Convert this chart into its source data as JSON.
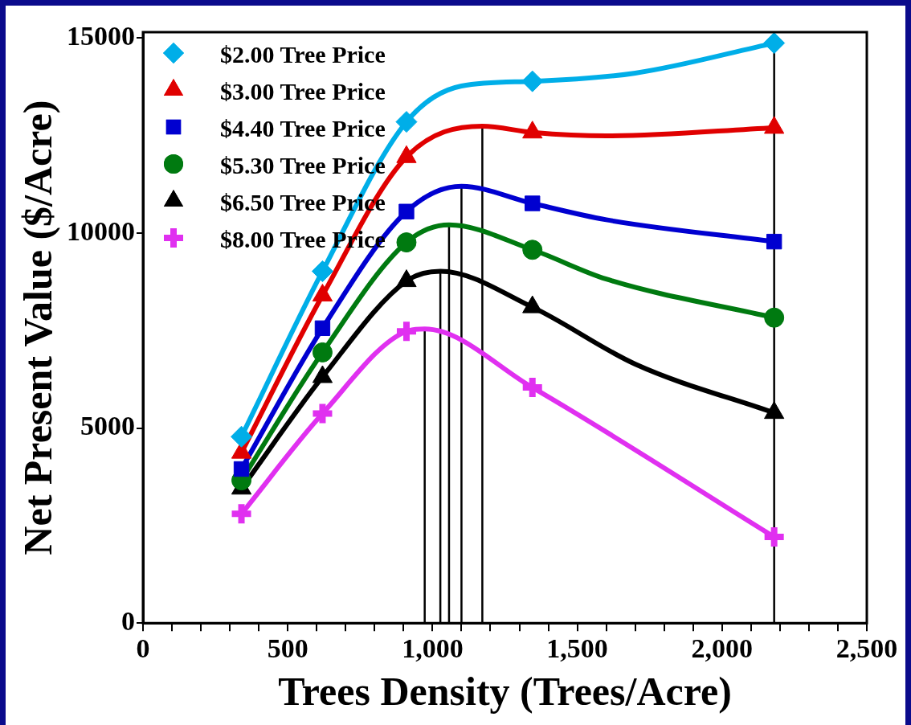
{
  "chart_data": {
    "type": "line",
    "xlabel": "Trees Density (Trees/Acre)",
    "ylabel": "Net Present Value ($/Acre)",
    "xlim": [
      0,
      2500
    ],
    "xticks": [
      0,
      {
        "value": 100,
        "label": null
      },
      {
        "value": 200,
        "label": null
      },
      {
        "value": 300,
        "label": null
      },
      {
        "value": 400,
        "label": null
      },
      500,
      {
        "value": 600,
        "label": null
      },
      {
        "value": 700,
        "label": null
      },
      {
        "value": 800,
        "label": null
      },
      {
        "value": 900,
        "label": null
      },
      {
        "value": 1000,
        "label": "1,000"
      },
      {
        "value": 1100,
        "label": null
      },
      {
        "value": 1200,
        "label": null
      },
      {
        "value": 1300,
        "label": null
      },
      {
        "value": 1400,
        "label": null
      },
      {
        "value": 1500,
        "label": "1,500"
      },
      {
        "value": 1600,
        "label": null
      },
      {
        "value": 1700,
        "label": null
      },
      {
        "value": 1800,
        "label": null
      },
      {
        "value": 1900,
        "label": null
      },
      {
        "value": 2000,
        "label": "2,000"
      },
      {
        "value": 2100,
        "label": null
      },
      {
        "value": 2200,
        "label": null
      },
      {
        "value": 2300,
        "label": null
      },
      {
        "value": 2400,
        "label": null
      },
      {
        "value": 2500,
        "label": "2,500"
      }
    ],
    "ylim": [
      0,
      15150
    ],
    "yticks": [
      0,
      5000,
      10000,
      15000
    ],
    "grid": false,
    "legend": "top left",
    "line_style": "solid",
    "series": [
      {
        "type": "line",
        "color": "#00aee8",
        "marker": "none",
        "x": [
          340,
          620,
          910,
          1100,
          1345,
          1700,
          2180
        ],
        "values": [
          4780,
          9020,
          12850,
          13770,
          13890,
          14100,
          14870
        ]
      },
      {
        "type": "line",
        "color": "#e00000",
        "marker": "none",
        "x": [
          340,
          620,
          910,
          1172,
          1345,
          1600,
          2180
        ],
        "values": [
          4370,
          8400,
          11950,
          12740,
          12580,
          12490,
          12700
        ]
      },
      {
        "type": "line",
        "color": "#0000d0",
        "marker": "none",
        "x": [
          340,
          620,
          910,
          1100,
          1345,
          1600,
          2180
        ],
        "values": [
          3950,
          7560,
          10550,
          11200,
          10760,
          10340,
          9780
        ]
      },
      {
        "type": "line",
        "color": "#007a10",
        "marker": "none",
        "x": [
          340,
          620,
          910,
          1057,
          1345,
          1600,
          2180
        ],
        "values": [
          3660,
          6940,
          9760,
          10210,
          9570,
          8820,
          7830
        ]
      },
      {
        "type": "line",
        "color": "#000000",
        "marker": "none",
        "x": [
          340,
          620,
          910,
          1027,
          1345,
          1700,
          2180
        ],
        "values": [
          3450,
          6310,
          8770,
          9020,
          8100,
          6640,
          5390
        ]
      },
      {
        "type": "line",
        "color": "#e030f0",
        "marker": "none",
        "x": [
          340,
          620,
          910,
          973,
          1345,
          2180
        ],
        "values": [
          2800,
          5370,
          7480,
          7540,
          6040,
          2210
        ]
      },
      {
        "type": "scatter",
        "name": "$2.00 Tree Price",
        "color": "#00aee8",
        "marker": "diamond",
        "x": [
          340,
          620,
          910,
          1345,
          2180
        ],
        "values": [
          4780,
          9020,
          12850,
          13890,
          14870
        ]
      },
      {
        "type": "scatter",
        "name": "$3.00 Tree Price",
        "color": "#e00000",
        "marker": "triangle",
        "x": [
          340,
          620,
          910,
          1345,
          2180
        ],
        "values": [
          4370,
          8400,
          11950,
          12580,
          12700
        ]
      },
      {
        "type": "scatter",
        "name": "$4.40 Tree Price",
        "color": "#0000d0",
        "marker": "square",
        "x": [
          340,
          620,
          910,
          1345,
          2180
        ],
        "values": [
          3950,
          7560,
          10550,
          10760,
          9780
        ]
      },
      {
        "type": "scatter",
        "name": "$5.30 Tree Price",
        "color": "#007a10",
        "marker": "circle",
        "x": [
          340,
          620,
          910,
          1345,
          2180
        ],
        "values": [
          3660,
          6940,
          9760,
          9570,
          7830
        ]
      },
      {
        "type": "scatter",
        "name": "$6.50 Tree Price",
        "color": "#000000",
        "marker": "triangle",
        "x": [
          340,
          620,
          910,
          1345,
          2180
        ],
        "values": [
          3450,
          6310,
          8770,
          8100,
          5390
        ]
      },
      {
        "type": "scatter",
        "name": "$8.00 Tree Price",
        "color": "#e030f0",
        "marker": "cross",
        "x": [
          340,
          620,
          910,
          1345,
          2180
        ],
        "values": [
          2800,
          5370,
          7480,
          6040,
          2210
        ]
      },
      {
        "type": "line",
        "color": "#000000",
        "marker": "none",
        "x": [
          973,
          973
        ],
        "values": [
          0,
          7540
        ]
      },
      {
        "type": "line",
        "color": "#000000",
        "marker": "none",
        "x": [
          1027,
          1027
        ],
        "values": [
          0,
          9020
        ]
      },
      {
        "type": "line",
        "color": "#000000",
        "marker": "none",
        "x": [
          1057,
          1057
        ],
        "values": [
          0,
          10210
        ]
      },
      {
        "type": "line",
        "color": "#000000",
        "marker": "none",
        "x": [
          1100,
          1100
        ],
        "values": [
          0,
          11200
        ]
      },
      {
        "type": "line",
        "color": "#000000",
        "marker": "none",
        "x": [
          1172,
          1172
        ],
        "values": [
          0,
          12740
        ]
      },
      {
        "type": "line",
        "color": "#000000",
        "marker": "none",
        "x": [
          2180,
          2180
        ],
        "values": [
          0,
          15150
        ]
      }
    ]
  }
}
